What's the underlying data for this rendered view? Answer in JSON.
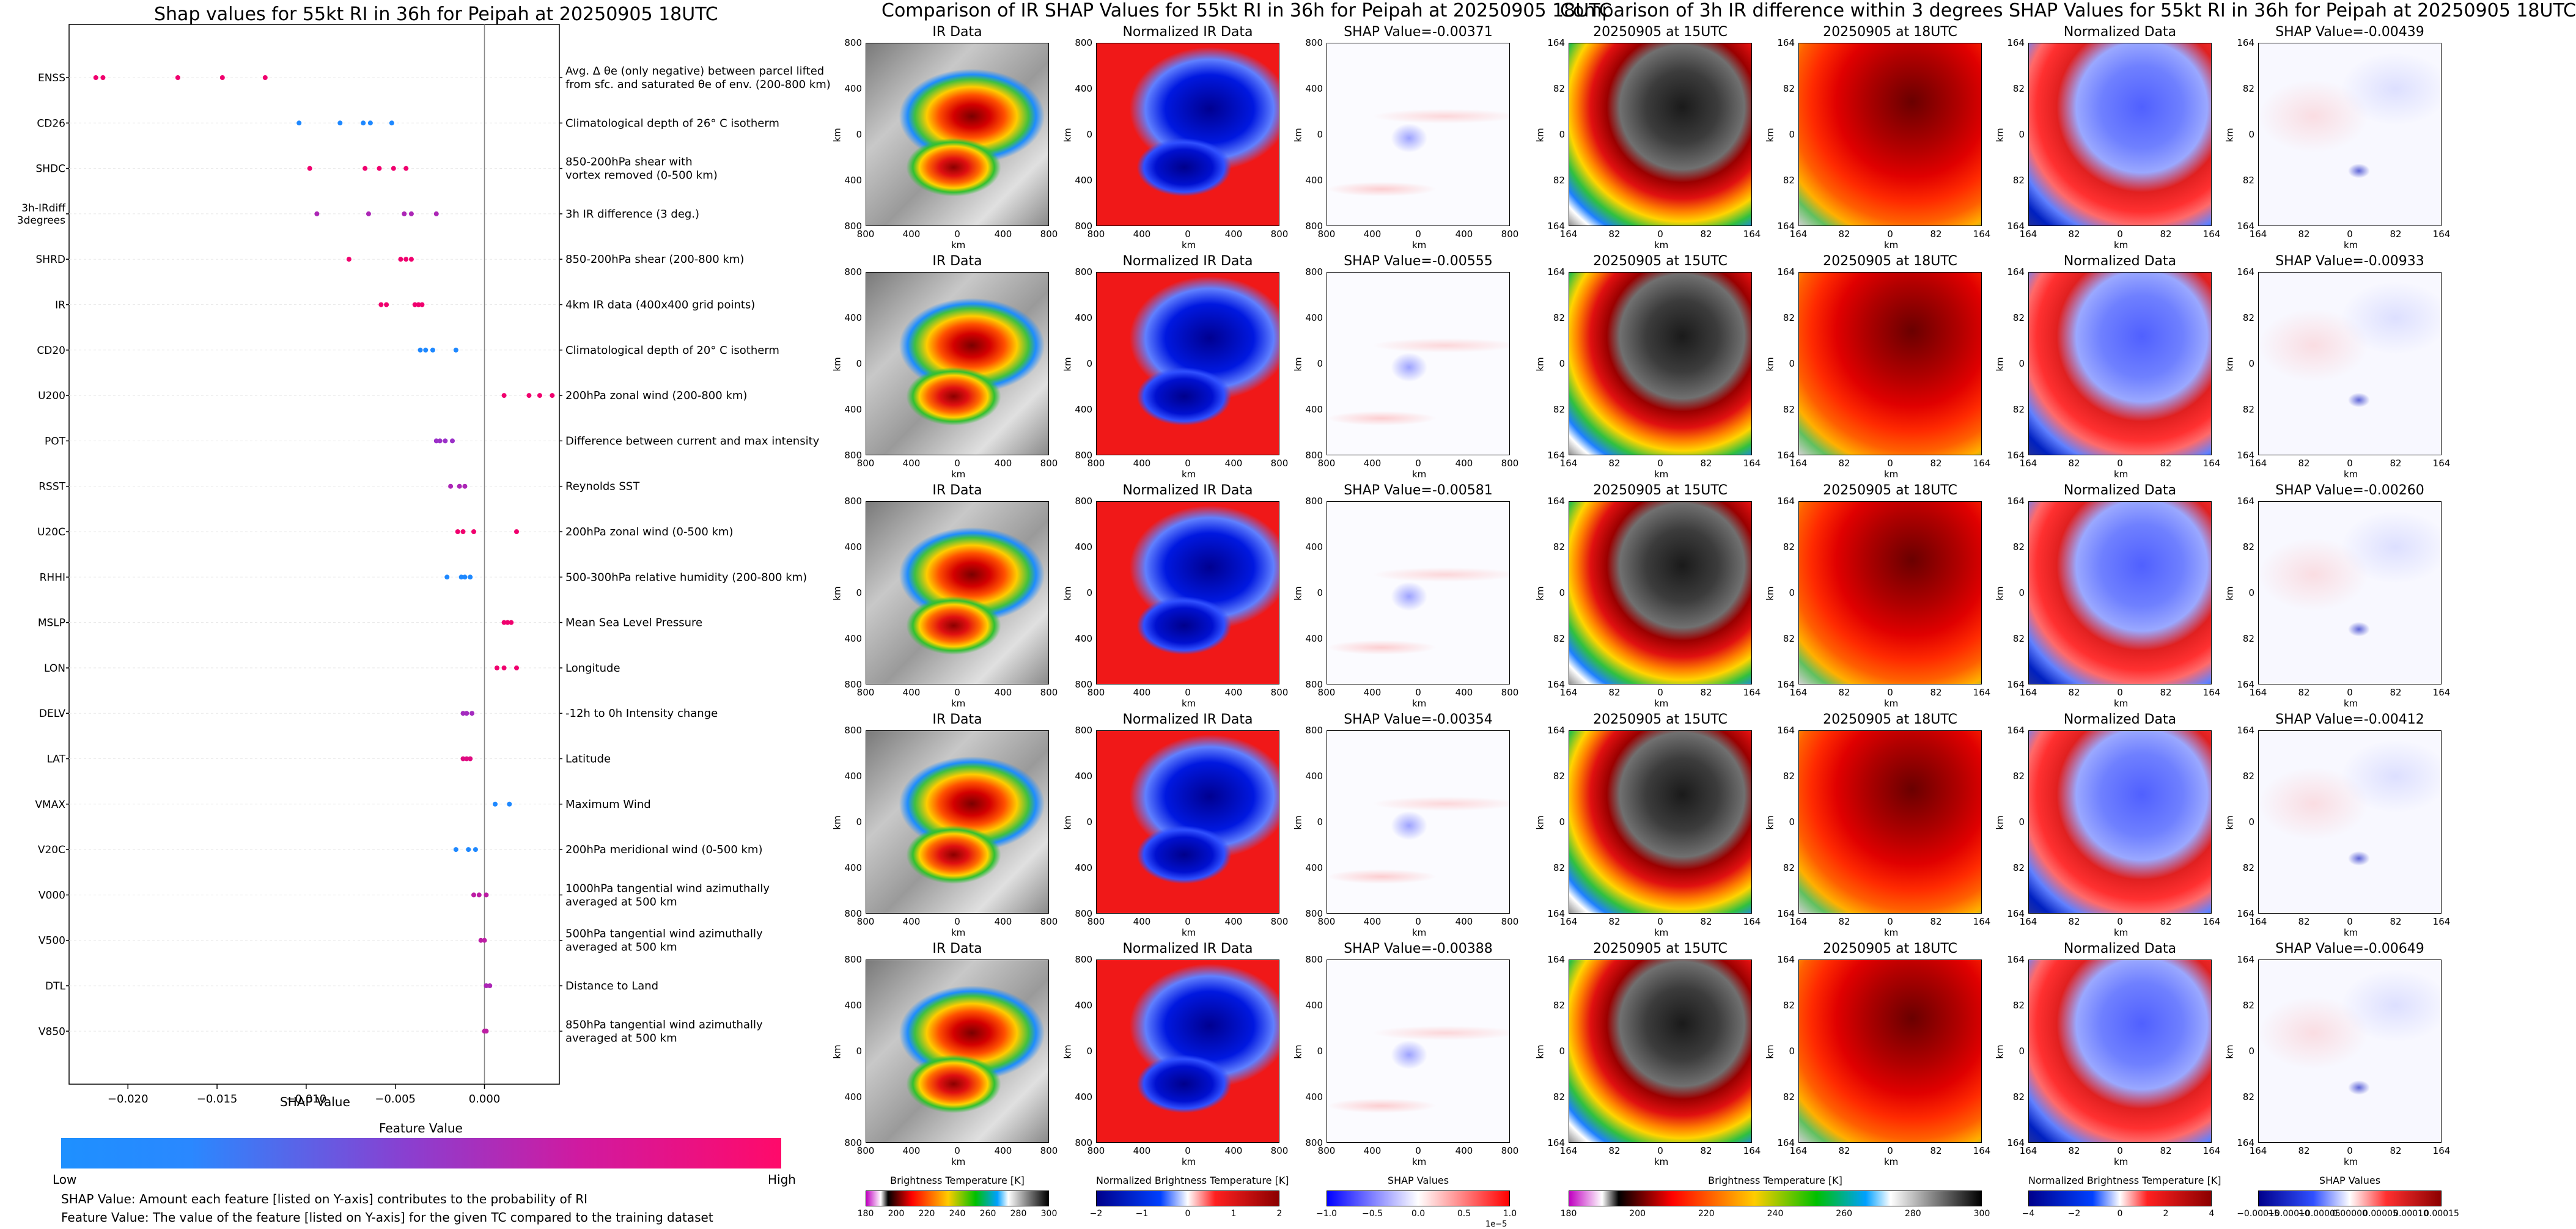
{
  "left_chart": {
    "title": "Shap values for 55kt RI in 36h for Peipah at 20250905 18UTC",
    "xlabel": "SHAP Value",
    "xticks": [
      "−0.020",
      "−0.015",
      "−0.010",
      "−0.005",
      "0.000"
    ],
    "legend_title": "Feature Value",
    "legend_low": "Low",
    "legend_high": "High",
    "footnote1": "SHAP Value: Amount each feature [listed on Y-axis] contributes to the probability of RI",
    "footnote2": "Feature Value: The value of the feature [listed on Y-axis] for the given TC compared to the training dataset"
  },
  "middle_group": {
    "title": "Comparison of IR SHAP Values for 55kt RI in 36h for Peipah at 20250905 18UTC",
    "col_titles": [
      "IR Data",
      "Normalized IR Data"
    ],
    "shap_titles": [
      "SHAP Value=-0.00371",
      "SHAP Value=-0.00555",
      "SHAP Value=-0.00581",
      "SHAP Value=-0.00354",
      "SHAP Value=-0.00388"
    ],
    "ticks": [
      "800",
      "400",
      "0",
      "400",
      "800"
    ],
    "axis_label": "km",
    "cbar1_label": "Brightness Temperature [K]",
    "cbar1_ticks": [
      "180",
      "200",
      "220",
      "240",
      "260",
      "280",
      "300"
    ],
    "cbar2_label": "Normalized Brightness Temperature [K]",
    "cbar2_ticks": [
      "−2",
      "−1",
      "0",
      "1",
      "2"
    ],
    "cbar3_label": "SHAP Values",
    "cbar3_ticks": [
      "−1.0",
      "−0.5",
      "0.0",
      "0.5",
      "1.0"
    ],
    "cbar3_exp": "1e−5"
  },
  "right_group": {
    "title": "Comparison of 3h IR difference within 3 degrees SHAP Values for 55kt RI in 36h for Peipah at 20250905 18UTC",
    "col_titles": [
      "20250905 at 15UTC",
      "20250905 at 18UTC",
      "Normalized Data"
    ],
    "shap_titles": [
      "SHAP Value=-0.00439",
      "SHAP Value=-0.00933",
      "SHAP Value=-0.00260",
      "SHAP Value=-0.00412",
      "SHAP Value=-0.00649"
    ],
    "ticks": [
      "164",
      "82",
      "0",
      "82",
      "164"
    ],
    "axis_label": "km",
    "cbar1_label": "Brightness Temperature [K]",
    "cbar1_ticks": [
      "180",
      "200",
      "220",
      "240",
      "260",
      "280",
      "300"
    ],
    "cbar2_label": "Normalized Brightness Temperature [K]",
    "cbar2_ticks": [
      "−4",
      "−2",
      "0",
      "2",
      "4"
    ],
    "cbar3_label": "SHAP Values",
    "cbar3_ticks": [
      "−0.00015",
      "−0.00010",
      "−0.00005",
      "0.00000",
      "0.00005",
      "0.00010",
      "0.00015"
    ]
  },
  "chart_data": {
    "type": "scatter",
    "title": "Shap values for 55kt RI in 36h for Peipah at 20250905 18UTC",
    "xlabel": "SHAP Value",
    "xlim": [
      -0.0233,
      0.0042
    ],
    "colors": {
      "low": "#1e88ff",
      "mid": "#9b30c8",
      "high": "#f0006e"
    },
    "features": [
      {
        "code": "ENSS",
        "desc": "Avg. Δ θe (only negative) between parcel lifted\nfrom sfc. and saturated θe of env. (200-800 km)",
        "points": [
          [
            -0.0218,
            1
          ],
          [
            -0.0214,
            1
          ],
          [
            -0.0172,
            1
          ],
          [
            -0.0147,
            1
          ],
          [
            -0.0123,
            1
          ]
        ]
      },
      {
        "code": "CD26",
        "desc": "Climatological depth of 26° C isotherm",
        "points": [
          [
            -0.0104,
            0
          ],
          [
            -0.0081,
            0
          ],
          [
            -0.0068,
            0
          ],
          [
            -0.0064,
            0
          ],
          [
            -0.0052,
            0
          ]
        ]
      },
      {
        "code": "SHDC",
        "desc": "850-200hPa shear with\nvortex removed (0-500 km)",
        "points": [
          [
            -0.0098,
            1
          ],
          [
            -0.0067,
            1
          ],
          [
            -0.0059,
            1
          ],
          [
            -0.0051,
            1
          ],
          [
            -0.0044,
            1
          ]
        ]
      },
      {
        "code": "3h-IRdiff\n3degrees",
        "desc": "3h IR difference (3 deg.)",
        "points": [
          [
            -0.0094,
            0.6
          ],
          [
            -0.0065,
            0.6
          ],
          [
            -0.0045,
            0.6
          ],
          [
            -0.0041,
            0.6
          ],
          [
            -0.0027,
            0.6
          ]
        ]
      },
      {
        "code": "SHRD",
        "desc": "850-200hPa shear (200-800 km)",
        "points": [
          [
            -0.0076,
            1
          ],
          [
            -0.0047,
            1
          ],
          [
            -0.0044,
            1
          ],
          [
            -0.0041,
            1
          ]
        ]
      },
      {
        "code": "IR",
        "desc": "4km IR data (400x400 grid points)",
        "points": [
          [
            -0.0058,
            1
          ],
          [
            -0.0055,
            1
          ],
          [
            -0.0039,
            1
          ],
          [
            -0.0037,
            1
          ],
          [
            -0.0035,
            1
          ]
        ]
      },
      {
        "code": "CD20",
        "desc": "Climatological depth of 20° C isotherm",
        "points": [
          [
            -0.0036,
            0
          ],
          [
            -0.0033,
            0
          ],
          [
            -0.0029,
            0
          ],
          [
            -0.0016,
            0
          ]
        ]
      },
      {
        "code": "U200",
        "desc": "200hPa zonal wind (200-800 km)",
        "points": [
          [
            0.0011,
            1
          ],
          [
            0.0025,
            1
          ],
          [
            0.0031,
            1
          ],
          [
            0.0038,
            1
          ]
        ]
      },
      {
        "code": "POT",
        "desc": "Difference between current and max intensity",
        "points": [
          [
            -0.0027,
            0.5
          ],
          [
            -0.0025,
            0.5
          ],
          [
            -0.0022,
            0.5
          ],
          [
            -0.0018,
            0.5
          ]
        ]
      },
      {
        "code": "RSST",
        "desc": "Reynolds SST",
        "points": [
          [
            -0.0019,
            0.6
          ],
          [
            -0.0014,
            0.6
          ],
          [
            -0.0011,
            0.6
          ]
        ]
      },
      {
        "code": "U20C",
        "desc": "200hPa zonal wind (0-500 km)",
        "points": [
          [
            -0.0015,
            1
          ],
          [
            -0.0012,
            1
          ],
          [
            -0.0006,
            1
          ],
          [
            0.0018,
            1
          ]
        ]
      },
      {
        "code": "RHHI",
        "desc": "500-300hPa relative humidity (200-800 km)",
        "points": [
          [
            -0.0021,
            0
          ],
          [
            -0.0013,
            0
          ],
          [
            -0.0011,
            0
          ],
          [
            -0.0008,
            0
          ]
        ]
      },
      {
        "code": "MSLP",
        "desc": "Mean Sea Level Pressure",
        "points": [
          [
            0.0011,
            1
          ],
          [
            0.0013,
            1
          ],
          [
            0.0015,
            1
          ]
        ]
      },
      {
        "code": "LON",
        "desc": "Longitude",
        "points": [
          [
            0.0007,
            1
          ],
          [
            0.0011,
            1
          ],
          [
            0.0018,
            1
          ]
        ]
      },
      {
        "code": "DELV",
        "desc": "-12h to 0h Intensity change",
        "points": [
          [
            -0.0012,
            0.55
          ],
          [
            -0.001,
            0.55
          ],
          [
            -0.0007,
            0.55
          ]
        ]
      },
      {
        "code": "LAT",
        "desc": "Latitude",
        "points": [
          [
            -0.0012,
            0.9
          ],
          [
            -0.001,
            0.9
          ],
          [
            -0.0008,
            0.9
          ]
        ]
      },
      {
        "code": "VMAX",
        "desc": "Maximum Wind",
        "points": [
          [
            0.0006,
            0
          ],
          [
            0.0014,
            0
          ]
        ]
      },
      {
        "code": "V20C",
        "desc": "200hPa meridional wind (0-500 km)",
        "points": [
          [
            -0.0016,
            0
          ],
          [
            -0.0009,
            0
          ],
          [
            -0.0005,
            0
          ]
        ]
      },
      {
        "code": "V000",
        "desc": "1000hPa tangential wind azimuthally\naveraged at 500 km",
        "points": [
          [
            -0.0006,
            0.7
          ],
          [
            -0.0003,
            0.7
          ],
          [
            0.0001,
            0.7
          ]
        ]
      },
      {
        "code": "V500",
        "desc": "500hPa tangential wind azimuthally\naveraged at 500 km",
        "points": [
          [
            -0.0002,
            0.7
          ],
          [
            0.0,
            0.7
          ]
        ]
      },
      {
        "code": "DTL",
        "desc": "Distance to Land",
        "points": [
          [
            0.0001,
            0.6
          ],
          [
            0.0003,
            0.6
          ]
        ]
      },
      {
        "code": "V850",
        "desc": "850hPa tangential wind azimuthally\naveraged at 500 km",
        "points": [
          [
            0.0,
            0.7
          ],
          [
            0.0001,
            0.7
          ]
        ]
      }
    ]
  }
}
